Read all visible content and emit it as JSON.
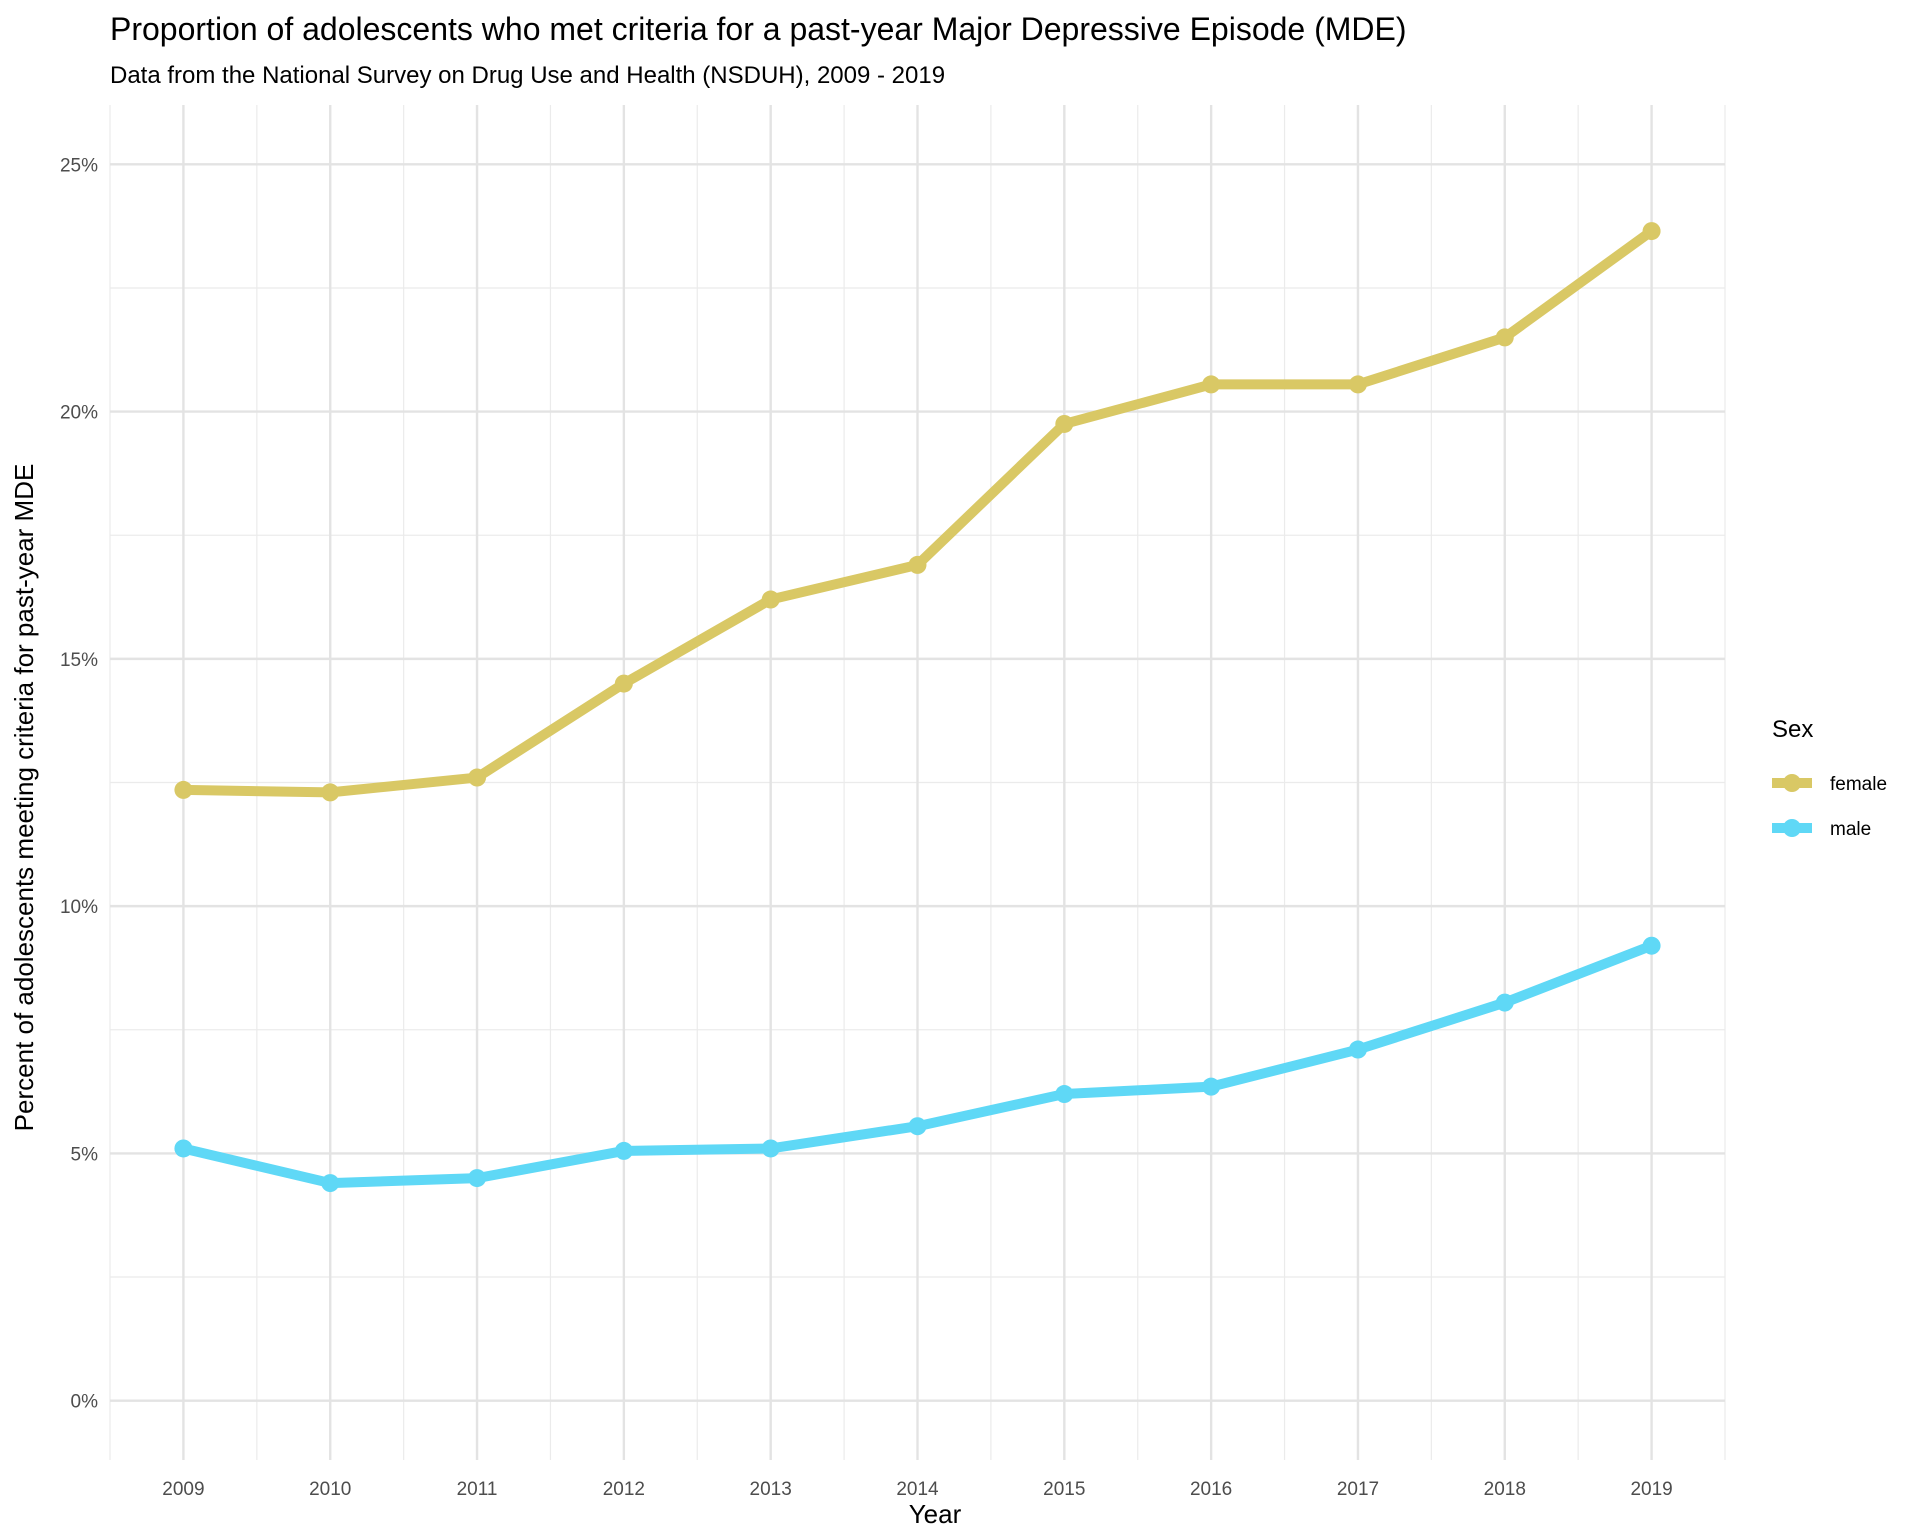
{
  "chart_data": {
    "type": "line",
    "title": "Proportion of adolescents who met criteria for a past-year Major Depressive Episode (MDE)",
    "subtitle": "Data from the National Survey on Drug Use and Health (NSDUH), 2009 - 2019",
    "xlabel": "Year",
    "ylabel": "Percent of adolescents meeting criteria for past-year MDE",
    "x": [
      2009,
      2010,
      2011,
      2012,
      2013,
      2014,
      2015,
      2016,
      2017,
      2018,
      2019
    ],
    "x_tick_labels": [
      "2009",
      "2010",
      "2011",
      "2012",
      "2013",
      "2014",
      "2015",
      "2016",
      "2017",
      "2018",
      "2019"
    ],
    "ylim": [
      -1.2,
      26.2
    ],
    "y_ticks": [
      0,
      5,
      10,
      15,
      20,
      25
    ],
    "y_tick_labels": [
      "0%",
      "5%",
      "10%",
      "15%",
      "20%",
      "25%"
    ],
    "grid": true,
    "legend": {
      "title": "Sex",
      "position": "right"
    },
    "series": [
      {
        "name": "female",
        "color": "#D9C865",
        "values": [
          12.35,
          12.3,
          12.6,
          14.5,
          16.2,
          16.9,
          19.75,
          20.55,
          20.55,
          21.5,
          23.65
        ]
      },
      {
        "name": "male",
        "color": "#5FD8F6",
        "values": [
          5.1,
          4.4,
          4.5,
          5.05,
          5.1,
          5.55,
          6.2,
          6.35,
          7.1,
          8.05,
          9.2
        ]
      }
    ]
  }
}
